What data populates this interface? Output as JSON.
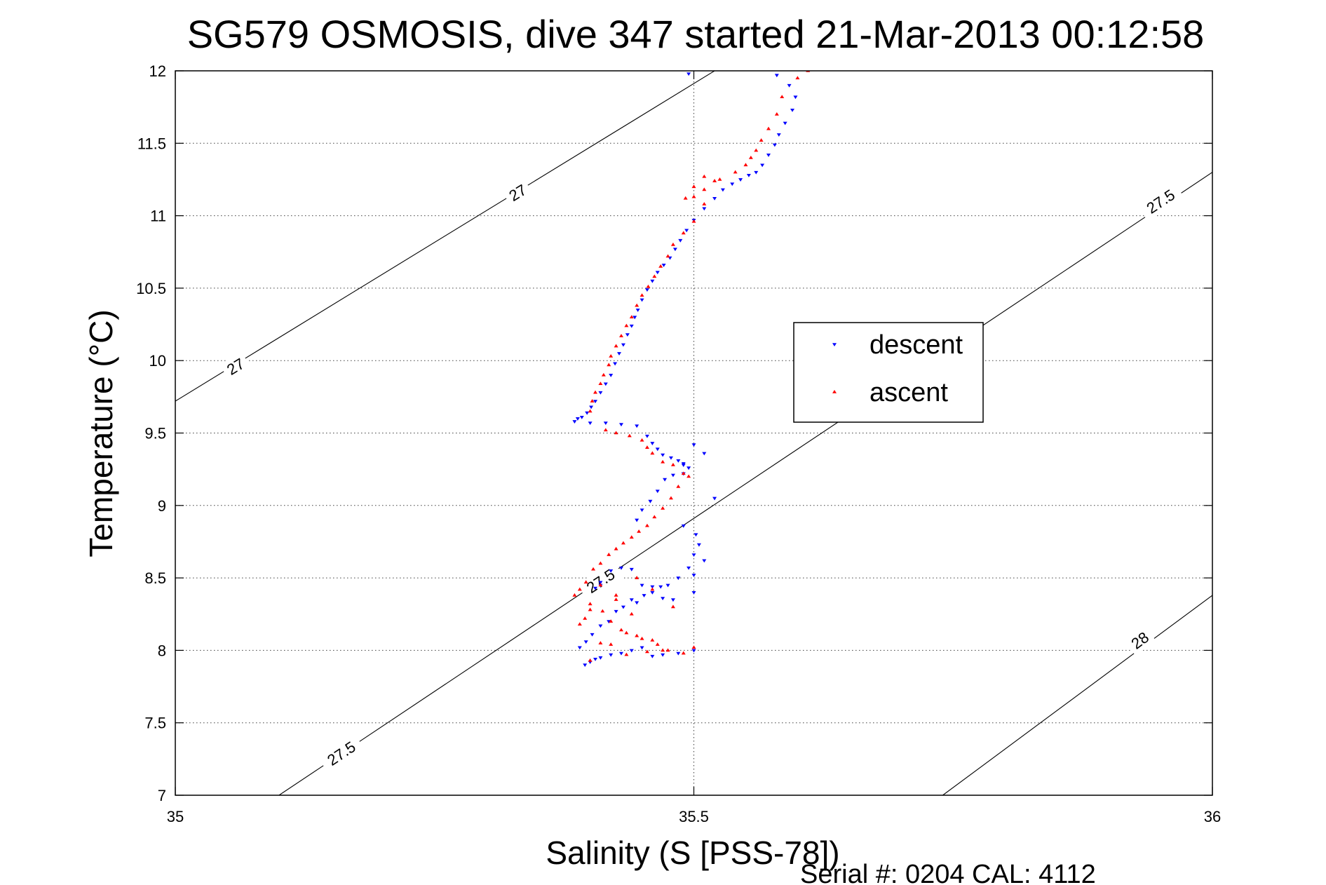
{
  "chart_data": {
    "type": "scatter",
    "title": "SG579 OSMOSIS, dive 347 started 21-Mar-2013 00:12:58",
    "xlabel": "Salinity (S [PSS-78])",
    "ylabel": "Temperature (°C)",
    "xlim": [
      35,
      36
    ],
    "ylim": [
      7,
      12
    ],
    "xticks": [
      35,
      35.5,
      36
    ],
    "xtick_labels": [
      "35",
      "35.5",
      "36"
    ],
    "yticks": [
      7,
      7.5,
      8,
      8.5,
      9,
      9.5,
      10,
      10.5,
      11,
      11.5,
      12
    ],
    "ytick_labels": [
      "7",
      "7.5",
      "8",
      "8.5",
      "9",
      "9.5",
      "10",
      "10.5",
      "11",
      "11.5",
      "12"
    ],
    "grid": true,
    "legend_position": "right",
    "footer": "Serial #: 0204  CAL: 4112",
    "contours": [
      {
        "label": "27",
        "points": [
          [
            35.0,
            9.72
          ],
          [
            35.52,
            12.0
          ]
        ],
        "label_positions": [
          [
            35.058,
            9.96
          ],
          [
            35.33,
            11.16
          ]
        ]
      },
      {
        "label": "27.5",
        "points": [
          [
            35.1,
            7.0
          ],
          [
            36.0,
            11.3
          ]
        ],
        "label_positions": [
          [
            35.16,
            7.29
          ],
          [
            35.41,
            8.48
          ],
          [
            35.95,
            11.1
          ]
        ]
      },
      {
        "label": "28",
        "points": [
          [
            35.74,
            7.0
          ],
          [
            36.0,
            8.38
          ]
        ],
        "label_positions": [
          [
            35.93,
            8.07
          ]
        ]
      }
    ],
    "series": [
      {
        "name": "descent",
        "color": "#0000ff",
        "marker": "triangle-down",
        "x": [
          35.495,
          35.58,
          35.592,
          35.598,
          35.595,
          35.588,
          35.582,
          35.578,
          35.572,
          35.566,
          35.56,
          35.553,
          35.545,
          35.537,
          35.528,
          35.52,
          35.51,
          35.5,
          35.493,
          35.487,
          35.482,
          35.477,
          35.471,
          35.465,
          35.46,
          35.455,
          35.45,
          35.446,
          35.443,
          35.44,
          35.436,
          35.432,
          35.428,
          35.424,
          35.42,
          35.415,
          35.41,
          35.405,
          35.401,
          35.397,
          35.392,
          35.388,
          35.385,
          35.4,
          35.415,
          35.43,
          35.445,
          35.455,
          35.46,
          35.465,
          35.47,
          35.478,
          35.485,
          35.49,
          35.495,
          35.49,
          35.48,
          35.472,
          35.465,
          35.458,
          35.45,
          35.445,
          35.49,
          35.502,
          35.505,
          35.5,
          35.51,
          35.495,
          35.5,
          35.485,
          35.475,
          35.468,
          35.46,
          35.452,
          35.445,
          35.44,
          35.432,
          35.425,
          35.418,
          35.41,
          35.402,
          35.396,
          35.39,
          35.5,
          35.485,
          35.47,
          35.46,
          35.45,
          35.44,
          35.43,
          35.42,
          35.41,
          35.405,
          35.4,
          35.395,
          35.5,
          35.48,
          35.47,
          35.46,
          35.45,
          35.44,
          35.43,
          35.42,
          35.41,
          35.49,
          35.5,
          35.51,
          35.52,
          35.405,
          35.41
        ],
        "y": [
          11.98,
          11.97,
          11.9,
          11.82,
          11.73,
          11.64,
          11.56,
          11.49,
          11.42,
          11.35,
          11.3,
          11.28,
          11.25,
          11.22,
          11.18,
          11.12,
          11.05,
          10.97,
          10.9,
          10.83,
          10.77,
          10.71,
          10.66,
          10.61,
          10.55,
          10.49,
          10.42,
          10.35,
          10.3,
          10.24,
          10.18,
          10.11,
          10.05,
          9.98,
          9.9,
          9.84,
          9.78,
          9.72,
          9.68,
          9.64,
          9.61,
          9.6,
          9.58,
          9.57,
          9.57,
          9.56,
          9.55,
          9.48,
          9.43,
          9.39,
          9.35,
          9.33,
          9.31,
          9.29,
          9.26,
          9.22,
          9.21,
          9.18,
          9.1,
          9.03,
          8.97,
          8.9,
          8.86,
          8.8,
          8.73,
          8.66,
          8.62,
          8.57,
          8.52,
          8.5,
          8.45,
          8.44,
          8.4,
          8.38,
          8.33,
          8.35,
          8.3,
          8.27,
          8.2,
          8.17,
          8.11,
          8.06,
          8.02,
          8.0,
          7.98,
          7.97,
          7.96,
          8.02,
          8.0,
          7.98,
          7.97,
          7.95,
          7.94,
          7.92,
          7.9,
          8.4,
          8.35,
          8.36,
          8.44,
          8.45,
          8.56,
          8.57,
          8.55,
          8.47,
          9.28,
          9.42,
          9.36,
          9.05,
          8.43,
          8.45
        ]
      },
      {
        "name": "ascent",
        "color": "#ff0000",
        "marker": "triangle-up",
        "x": [
          35.61,
          35.6,
          35.585,
          35.58,
          35.572,
          35.565,
          35.56,
          35.555,
          35.55,
          35.54,
          35.525,
          35.51,
          35.5,
          35.492,
          35.5,
          35.51,
          35.52,
          35.51,
          35.5,
          35.49,
          35.48,
          35.475,
          35.468,
          35.462,
          35.456,
          35.45,
          35.445,
          35.44,
          35.435,
          35.43,
          35.425,
          35.42,
          35.418,
          35.413,
          35.41,
          35.405,
          35.402,
          35.4,
          35.415,
          35.425,
          35.438,
          35.45,
          35.455,
          35.46,
          35.47,
          35.48,
          35.49,
          35.495,
          35.485,
          35.478,
          35.47,
          35.462,
          35.455,
          35.447,
          35.44,
          35.432,
          35.425,
          35.418,
          35.41,
          35.403,
          35.396,
          35.39,
          35.385,
          35.4,
          35.412,
          35.42,
          35.435,
          35.45,
          35.465,
          35.475,
          35.49,
          35.5,
          35.48,
          35.46,
          35.445,
          35.425,
          35.41,
          35.4,
          35.395,
          35.39,
          35.43,
          35.445,
          35.46,
          35.47,
          35.42,
          35.435,
          35.455,
          35.44,
          35.425,
          35.41,
          35.4
        ],
        "y": [
          12.0,
          11.95,
          11.82,
          11.7,
          11.6,
          11.52,
          11.45,
          11.4,
          11.35,
          11.3,
          11.25,
          11.18,
          11.13,
          11.12,
          11.2,
          11.27,
          11.24,
          11.08,
          10.96,
          10.88,
          10.8,
          10.72,
          10.65,
          10.58,
          10.51,
          10.45,
          10.38,
          10.3,
          10.24,
          10.17,
          10.1,
          10.03,
          9.97,
          9.9,
          9.84,
          9.78,
          9.72,
          9.65,
          9.52,
          9.5,
          9.48,
          9.45,
          9.4,
          9.36,
          9.3,
          9.28,
          9.22,
          9.2,
          9.13,
          9.05,
          8.98,
          8.92,
          8.86,
          8.82,
          8.78,
          8.74,
          8.7,
          8.66,
          8.6,
          8.56,
          8.47,
          8.42,
          8.38,
          8.32,
          8.27,
          8.2,
          8.12,
          8.08,
          8.04,
          8.0,
          7.98,
          8.02,
          8.3,
          8.42,
          8.5,
          8.38,
          8.45,
          8.28,
          8.22,
          8.18,
          8.14,
          8.1,
          8.07,
          8.0,
          8.04,
          7.97,
          7.99,
          8.25,
          8.35,
          8.05,
          7.93
        ]
      }
    ]
  }
}
